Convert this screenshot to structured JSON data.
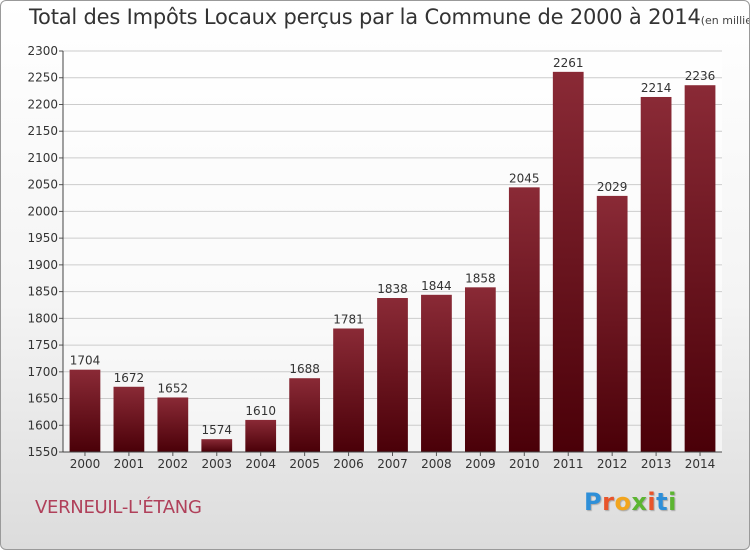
{
  "header": {
    "title": "Total des Impôts Locaux perçus par la Commune de 2000 à 2014",
    "unit": "(en milliers d'€)"
  },
  "footer": {
    "commune": "VERNEUIL-L'ÉTANG",
    "logo": "Proxiti"
  },
  "colors": {
    "bar_top": "#8a2a36",
    "bar_bottom": "#4a0008",
    "grid": "#cccccc",
    "commune_text": "#b0405a"
  },
  "chart_data": {
    "type": "bar",
    "title": "Total des Impôts Locaux perçus par la Commune de 2000 à 2014",
    "xlabel": "",
    "ylabel": "",
    "ylim": [
      1550,
      2300
    ],
    "ytick_step": 50,
    "grid": true,
    "categories": [
      "2000",
      "2001",
      "2002",
      "2003",
      "2004",
      "2005",
      "2006",
      "2007",
      "2008",
      "2009",
      "2010",
      "2011",
      "2012",
      "2013",
      "2014"
    ],
    "values": [
      1704,
      1672,
      1652,
      1574,
      1610,
      1688,
      1781,
      1838,
      1844,
      1858,
      2045,
      2261,
      2029,
      2214,
      2236
    ]
  }
}
